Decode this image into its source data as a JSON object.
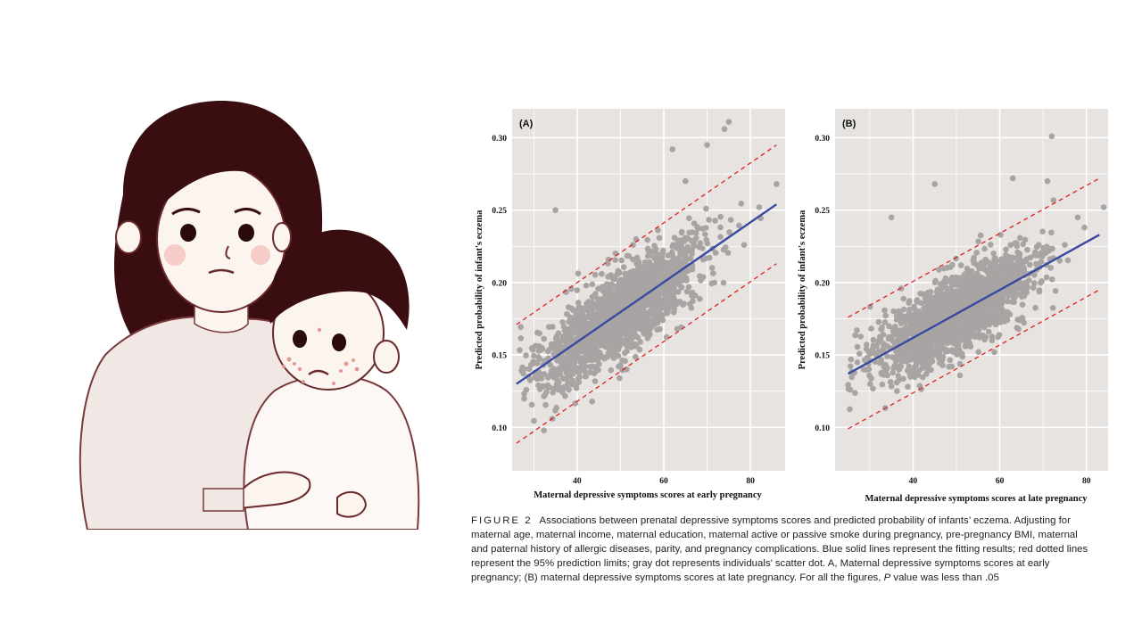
{
  "colors": {
    "panel_bg": "#e6e3e0",
    "grid": "#ffffff",
    "scatter": "#a8a4a3",
    "fit_line": "#3a4aa0",
    "prediction_limits": "#e02020",
    "hair": "#3a0e10"
  },
  "illustration": {
    "subject": "mother-holding-child-with-eczema",
    "icons": [
      "mother-figure-icon",
      "child-figure-icon",
      "eczema-spots-icon"
    ]
  },
  "chart_data": [
    {
      "type": "scatter",
      "panel_label": "(A)",
      "xlabel": "Maternal depressive symptoms scores at early pregnancy",
      "ylabel": "Predicted probability of infant's eczema",
      "xlim": [
        25,
        88
      ],
      "ylim": [
        0.07,
        0.32
      ],
      "xticks": [
        40,
        60,
        80
      ],
      "xtick_labels": [
        "40",
        "60",
        "80"
      ],
      "yticks": [
        0.1,
        0.15,
        0.2,
        0.25,
        0.3
      ],
      "ytick_labels": [
        "0.10",
        "0.15",
        "0.20",
        "0.25",
        "0.30"
      ],
      "grid": true,
      "series": [
        {
          "role": "fit",
          "x": [
            26,
            86
          ],
          "y": [
            0.13,
            0.254
          ]
        },
        {
          "role": "upper_95_prediction_limit",
          "x": [
            26,
            86
          ],
          "y": [
            0.171,
            0.295
          ]
        },
        {
          "role": "lower_95_prediction_limit",
          "x": [
            26,
            86
          ],
          "y": [
            0.089,
            0.213
          ]
        },
        {
          "role": "scatter",
          "x_range": [
            26,
            86
          ],
          "y_center_at_x_min": 0.13,
          "y_center_at_x_max": 0.254,
          "spread": 0.026,
          "outliers": [
            [
              75,
              0.311
            ],
            [
              74,
              0.306
            ],
            [
              86,
              0.268
            ],
            [
              70,
              0.295
            ],
            [
              65,
              0.27
            ],
            [
              35,
              0.25
            ],
            [
              82,
              0.252
            ],
            [
              62,
              0.292
            ]
          ]
        }
      ]
    },
    {
      "type": "scatter",
      "panel_label": "(B)",
      "xlabel": "Maternal depressive symptoms scores at late pregnancy",
      "ylabel": "Predicted probability of infant's eczema",
      "xlim": [
        22,
        85
      ],
      "ylim": [
        0.07,
        0.32
      ],
      "xticks": [
        40,
        60,
        80
      ],
      "xtick_labels": [
        "40",
        "60",
        "80"
      ],
      "yticks": [
        0.1,
        0.15,
        0.2,
        0.25,
        0.3
      ],
      "ytick_labels": [
        "0.10",
        "0.15",
        "0.20",
        "0.25",
        "0.30"
      ],
      "grid": true,
      "series": [
        {
          "role": "fit",
          "x": [
            25,
            83
          ],
          "y": [
            0.137,
            0.233
          ]
        },
        {
          "role": "upper_95_prediction_limit",
          "x": [
            25,
            83
          ],
          "y": [
            0.176,
            0.272
          ]
        },
        {
          "role": "lower_95_prediction_limit",
          "x": [
            25,
            83
          ],
          "y": [
            0.099,
            0.195
          ]
        },
        {
          "role": "scatter",
          "x_range": [
            25,
            83
          ],
          "y_center_at_x_min": 0.137,
          "y_center_at_x_max": 0.233,
          "spread": 0.024,
          "outliers": [
            [
              72,
              0.301
            ],
            [
              84,
              0.252
            ],
            [
              63,
              0.272
            ],
            [
              71,
              0.27
            ],
            [
              45,
              0.268
            ],
            [
              78,
              0.245
            ],
            [
              35,
              0.245
            ]
          ]
        }
      ]
    }
  ],
  "caption": {
    "figure_label": "FIGURE 2",
    "text_before_p": "Associations between prenatal depressive symptoms scores and predicted probability of infants’ eczema. Adjusting for maternal age, maternal income, maternal education, maternal active or passive smoke during pregnancy, pre-pregnancy BMI, maternal and paternal history of allergic diseases, parity, and pregnancy complications. Blue solid lines represent the fitting results; red dotted lines represent the 95% prediction limits; gray dot represents individuals’ scatter dot. A, Maternal depressive symptoms scores at early pregnancy; (B) maternal depressive symptoms scores at late pregnancy. For all the figures,",
    "p_symbol": "P",
    "text_after_p": "value was less than .05"
  }
}
